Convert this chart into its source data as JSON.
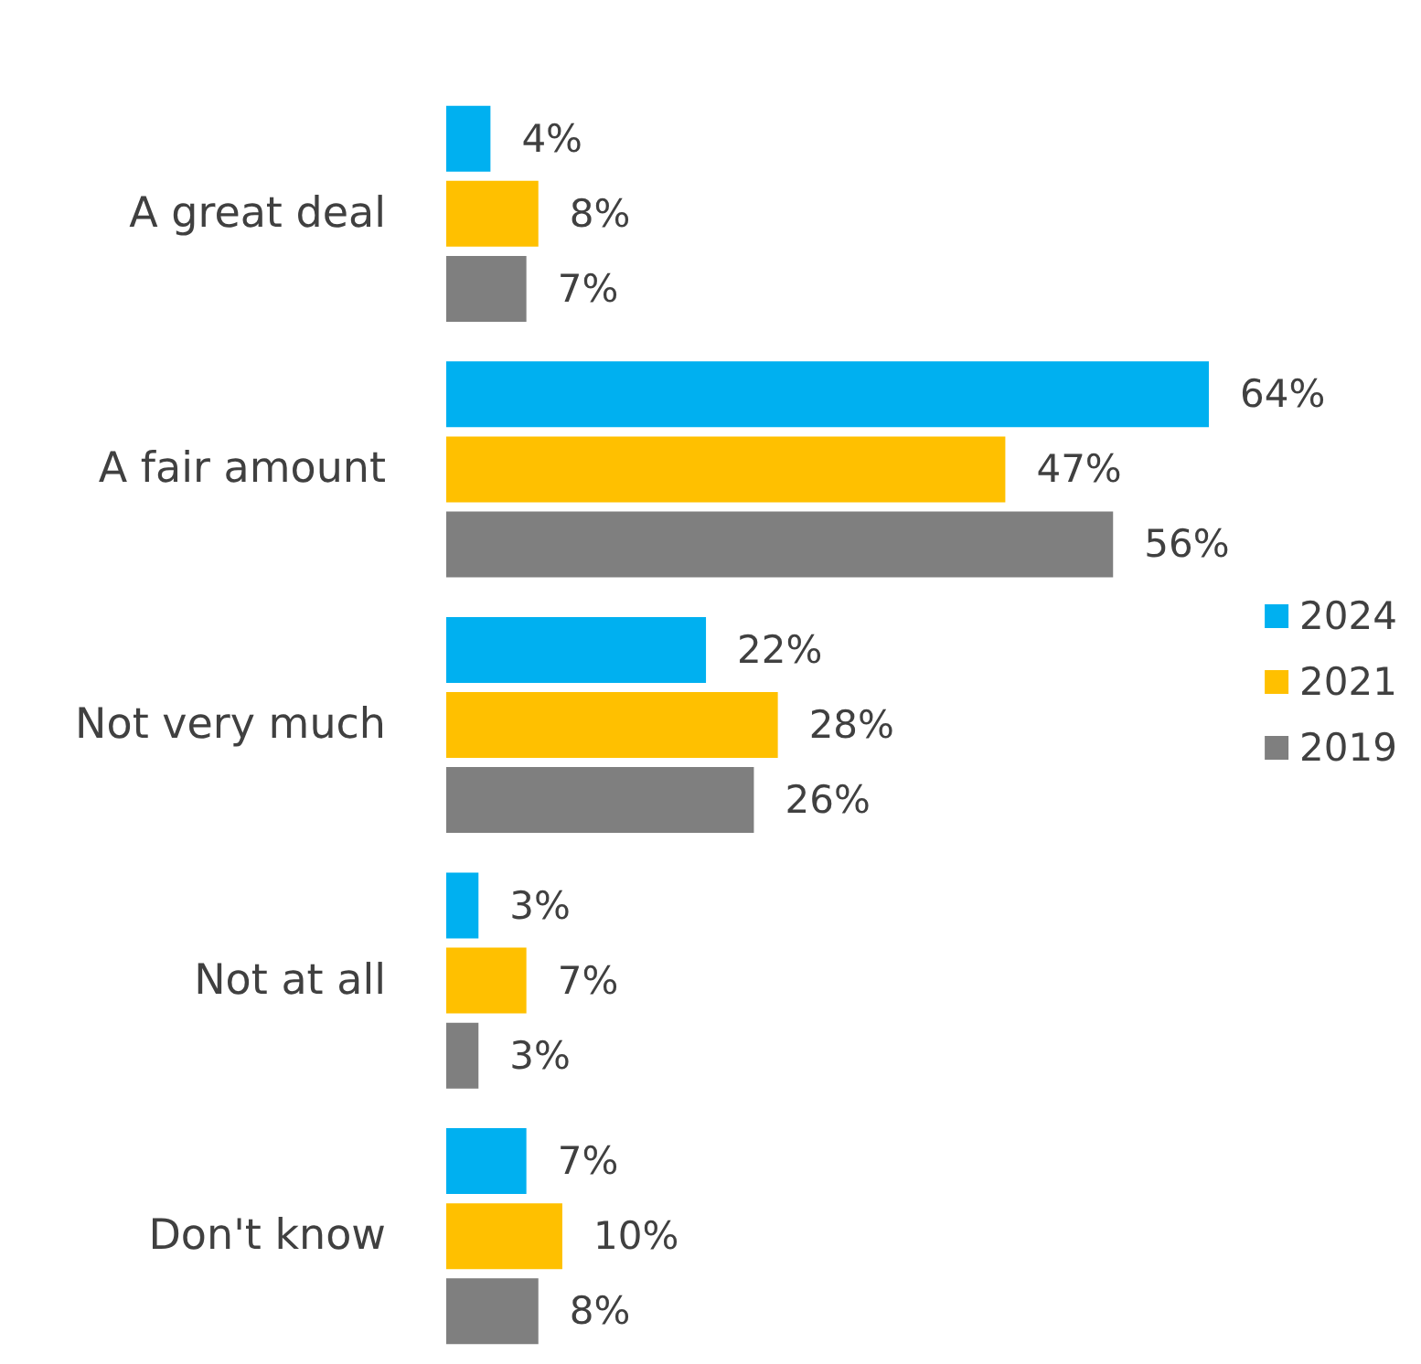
{
  "chart_data": {
    "type": "bar",
    "orientation": "horizontal",
    "categories": [
      "A great deal",
      "A fair amount",
      "Not very much",
      "Not at all",
      "Don't know"
    ],
    "series": [
      {
        "name": "2024",
        "color": "#00b0f0",
        "values": [
          4,
          64,
          22,
          3,
          7
        ],
        "value_labels": [
          "4%",
          "64%",
          "22%",
          "3%",
          "7%"
        ]
      },
      {
        "name": "2021",
        "color": "#ffc000",
        "values": [
          8,
          47,
          28,
          7,
          10
        ],
        "value_labels": [
          "8%",
          "47%",
          "28%",
          "7%",
          "10%"
        ]
      },
      {
        "name": "2019",
        "color": "#7f7f7f",
        "values": [
          7,
          56,
          26,
          3,
          8
        ],
        "value_labels": [
          "7%",
          "56%",
          "26%",
          "3%",
          "8%"
        ]
      }
    ],
    "legend": "right"
  }
}
